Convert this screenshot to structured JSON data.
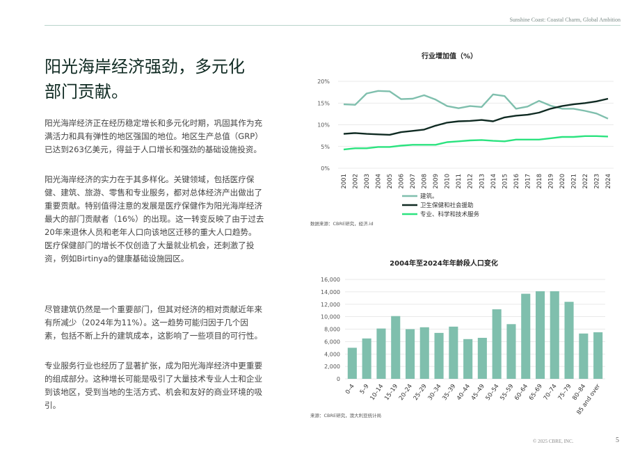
{
  "header": {
    "text": "Sunshine Coast: Coastal Charm, Global Ambition"
  },
  "title": "阳光海岸经济强劲，多元化部门贡献。",
  "paragraphs": [
    "阳光海岸经济正在经历稳定增长和多元化时期，巩固其作为充满活力和具有弹性的地区强国的地位。地区生产总值（GRP）已达到263亿美元，得益于人口增长和强劲的基础设施投资。",
    "阳光海岸经济的实力在于其多样化。关键领域，包括医疗保健、建筑、旅游、零售和专业服务，都对总体经济产出做出了重要贡献。特别值得注意的发展是医疗保健作为阳光海岸经济最大的部门贡献者（16%）的出现。这一转变反映了由于过去20年来退休人员和老年人口向该地区迁移的重大人口趋势。医疗保健部门的增长不仅创造了大量就业机会，还刺激了投资，例如Birtinya的健康基础设施园区。",
    "尽管建筑仍然是一个重要部门，但其对经济的相对贡献近年来有所减少（2024年为11%）。这一趋势可能归因于几个因素，包括不断上升的建筑成本，这影响了一些项目的可行性。",
    "专业服务行业也经历了显著扩张，成为阳光海岸经济中更重要的组成部分。这种增长可能是吸引了大量技术专业人士和企业到该地区，受到当地的生活方式、机会和友好的商业环境的吸引。"
  ],
  "footer": {
    "copyright": "© 2025 CBRE, INC.",
    "page": "5"
  },
  "chart_data": [
    {
      "type": "line",
      "title": "行业增加值（%）",
      "x": [
        "2001",
        "2002",
        "2003",
        "2004",
        "2005",
        "2006",
        "2007",
        "2008",
        "2009",
        "2010",
        "2011",
        "2012",
        "2013",
        "2014",
        "2015",
        "2016",
        "2017",
        "2018",
        "2019",
        "2020",
        "2021",
        "2022",
        "2023",
        "2024"
      ],
      "yticks": [
        "0%",
        "5%",
        "10%",
        "15%",
        "20%"
      ],
      "ylim": [
        0,
        20
      ],
      "grid": true,
      "legend_position": "bottom",
      "series": [
        {
          "name": "建筑。",
          "color": "#7fbfad",
          "values": [
            14.7,
            14.6,
            17.2,
            17.8,
            17.7,
            15.9,
            16.0,
            16.8,
            15.8,
            14.3,
            13.8,
            14.3,
            14.1,
            17.0,
            16.6,
            13.7,
            14.2,
            15.5,
            14.4,
            13.7,
            13.7,
            13.2,
            12.6,
            11.4
          ]
        },
        {
          "name": "卫生保健和社会援助",
          "color": "#0f2a22",
          "values": [
            7.9,
            8.1,
            7.9,
            7.8,
            7.7,
            8.3,
            8.6,
            8.9,
            9.8,
            10.5,
            10.8,
            10.9,
            11.1,
            10.8,
            11.7,
            12.1,
            12.3,
            12.8,
            13.7,
            14.3,
            14.7,
            15.0,
            15.4,
            16.0
          ]
        },
        {
          "name": "专业、科学和技术服务",
          "color": "#2be37f",
          "values": [
            4.3,
            4.6,
            4.6,
            4.9,
            4.9,
            5.2,
            5.4,
            5.4,
            5.4,
            6.0,
            6.2,
            6.4,
            6.5,
            6.3,
            6.2,
            6.6,
            6.6,
            6.6,
            6.9,
            7.2,
            7.2,
            7.4,
            7.4,
            7.3
          ]
        }
      ],
      "source": "数据来源：CBRE研究，经济.id"
    },
    {
      "type": "bar",
      "title": "2004年至2024年年龄段人口变化",
      "categories": [
        "0–4",
        "5–9",
        "10–14",
        "15–19",
        "20–24",
        "25–29",
        "30–34",
        "35–39",
        "40–44",
        "45–49",
        "50–54",
        "55–59",
        "60–64",
        "65–69",
        "70–74",
        "75–79",
        "80–84",
        "85 and over"
      ],
      "values": [
        5000,
        6500,
        8100,
        10100,
        8000,
        8300,
        7400,
        8400,
        6400,
        6600,
        11200,
        8800,
        13700,
        14100,
        14100,
        12400,
        7300,
        7500
      ],
      "yticks": [
        "0",
        "2,000",
        "4,000",
        "6,000",
        "8,000",
        "10,000",
        "12,000",
        "14,000",
        "16,000"
      ],
      "ylim": [
        0,
        16000
      ],
      "grid": true,
      "color": "#7fbfad",
      "source": "来源：CBRE研究，澳大利亚统计局"
    }
  ]
}
